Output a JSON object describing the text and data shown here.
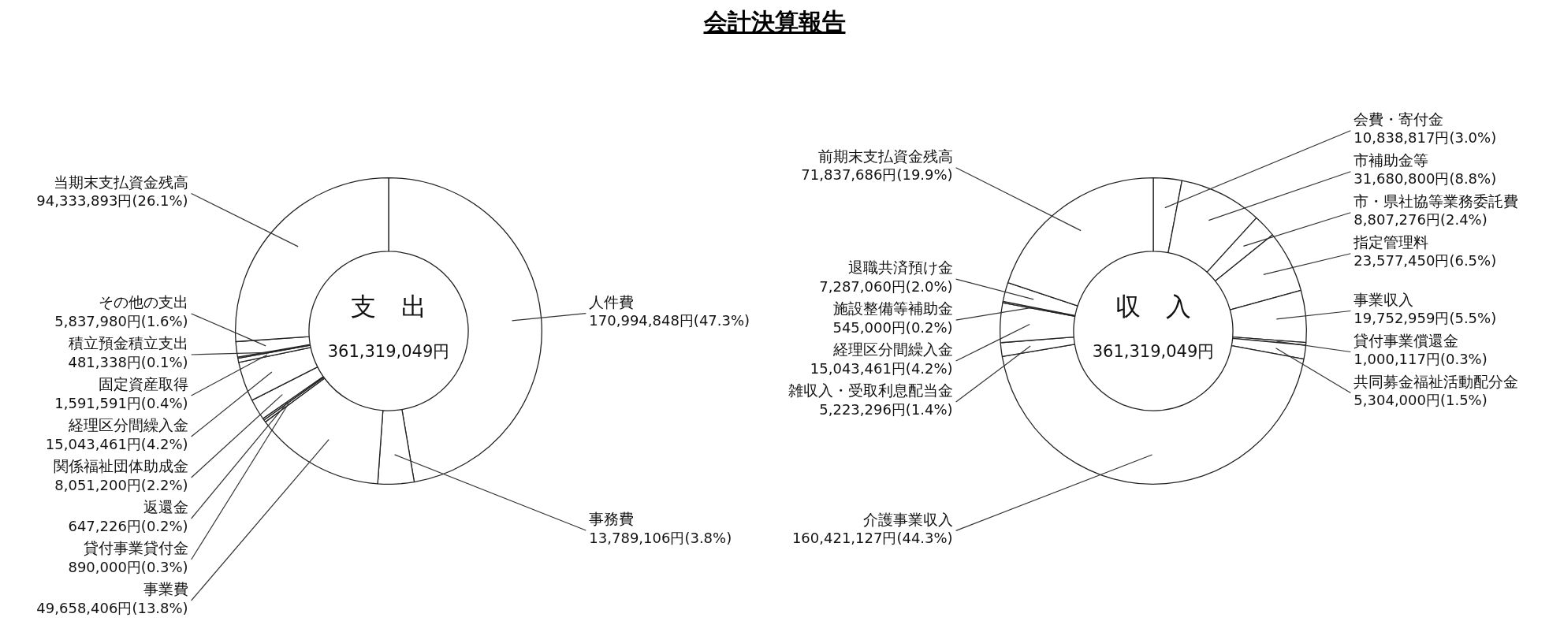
{
  "chart_data": [
    {
      "type": "donut",
      "title": "会計決算報告",
      "annotations": [
        "支　出",
        "361,319,049円"
      ],
      "categories": [
        "人件費",
        "事務費",
        "事業費",
        "貸付事業貸付金",
        "返還金",
        "関係福祉団体助成金",
        "経理区分間繰入金",
        "固定資産取得",
        "積立預金積立支出",
        "その他の支出",
        "当期末支払資金残高"
      ],
      "values": [
        170994848,
        13789106,
        49658406,
        890000,
        647226,
        8051200,
        15043461,
        1591591,
        481338,
        5837980,
        94333893
      ],
      "value_labels": [
        "170,994,848円(47.3%)",
        "13,789,106円(3.8%)",
        "49,658,406円(13.8%)",
        "890,000円(0.3%)",
        "647,226円(0.2%)",
        "8,051,200円(2.2%)",
        "15,043,461円(4.2%)",
        "1,591,591円(0.4%)",
        "481,338円(0.1%)",
        "5,837,980円(1.6%)",
        "94,333,893円(26.1%)"
      ],
      "colors": [
        "#ffffff",
        "#ffffff",
        "#ffffff",
        "#ffffff",
        "#ffffff",
        "#ffffff",
        "#ffffff",
        "#ffffff",
        "#ffffff",
        "#ffffff",
        "#ffffff"
      ]
    },
    {
      "type": "donut",
      "annotations": [
        "収　入",
        "361,319,049円"
      ],
      "categories": [
        "会費・寄付金",
        "市補助金等",
        "市・県社協等業務委託費",
        "指定管理料",
        "事業収入",
        "貸付事業償還金",
        "共同募金福祉活動配分金",
        "介護事業収入",
        "雑収入・受取利息配当金",
        "経理区分間繰入金",
        "施設整備等補助金",
        "退職共済預け金",
        "前期末支払資金残高"
      ],
      "values": [
        10838817,
        31680800,
        8807276,
        23577450,
        19752959,
        1000117,
        5304000,
        160421127,
        5223296,
        15043461,
        545000,
        7287060,
        71837686
      ],
      "value_labels": [
        "10,838,817円(3.0%)",
        "31,680,800円(8.8%)",
        "8,807,276円(2.4%)",
        "23,577,450円(6.5%)",
        "19,752,959円(5.5%)",
        "1,000,117円(0.3%)",
        "5,304,000円(1.5%)",
        "160,421,127円(44.3%)",
        "5,223,296円(1.4%)",
        "15,043,461円(4.2%)",
        "545,000円(0.2%)",
        "7,287,060円(2.0%)",
        "71,837,686円(19.9%)"
      ],
      "colors": [
        "#ffffff",
        "#ffffff",
        "#ffffff",
        "#ffffff",
        "#ffffff",
        "#ffffff",
        "#ffffff",
        "#ffffff",
        "#ffffff",
        "#ffffff",
        "#ffffff",
        "#ffffff",
        "#ffffff"
      ]
    }
  ]
}
